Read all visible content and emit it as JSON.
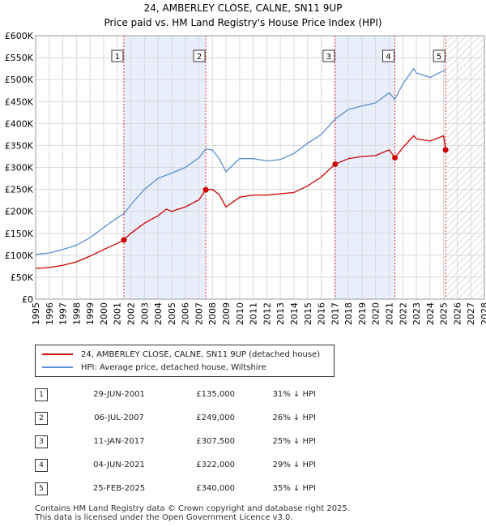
{
  "chart_data": {
    "type": "line",
    "title": "24, AMBERLEY CLOSE, CALNE, SN11 9UP",
    "subtitle": "Price paid vs. HM Land Registry's House Price Index (HPI)",
    "xlim": [
      1995,
      2028
    ],
    "ylim": [
      0,
      600000
    ],
    "x_ticks": [
      "1995",
      "1996",
      "1997",
      "1998",
      "1999",
      "2000",
      "2001",
      "2002",
      "2003",
      "2004",
      "2005",
      "2006",
      "2007",
      "2008",
      "2009",
      "2010",
      "2011",
      "2012",
      "2013",
      "2014",
      "2015",
      "2016",
      "2017",
      "2018",
      "2019",
      "2020",
      "2021",
      "2022",
      "2023",
      "2024",
      "2025",
      "2026",
      "2027",
      "2028"
    ],
    "y_ticks": [
      {
        "value": 0,
        "label": "£0"
      },
      {
        "value": 50000,
        "label": "£50K"
      },
      {
        "value": 100000,
        "label": "£100K"
      },
      {
        "value": 150000,
        "label": "£150K"
      },
      {
        "value": 200000,
        "label": "£200K"
      },
      {
        "value": 250000,
        "label": "£250K"
      },
      {
        "value": 300000,
        "label": "£300K"
      },
      {
        "value": 350000,
        "label": "£350K"
      },
      {
        "value": 400000,
        "label": "£400K"
      },
      {
        "value": 450000,
        "label": "£450K"
      },
      {
        "value": 500000,
        "label": "£500K"
      },
      {
        "value": 550000,
        "label": "£550K"
      },
      {
        "value": 600000,
        "label": "£600K"
      }
    ],
    "grid": true,
    "shaded_ranges": [
      [
        2001.49,
        2007.51
      ],
      [
        2017.03,
        2021.42
      ]
    ],
    "future_hatch_from": 2025.15,
    "series": [
      {
        "name": "24, AMBERLEY CLOSE, CALNE, SN11 9UP (detached house)",
        "color": "#cc0000",
        "x": [
          1995.0,
          1996.0,
          1997.0,
          1998.0,
          1999.0,
          2000.0,
          2001.0,
          2001.49,
          2002.0,
          2003.0,
          2004.0,
          2004.6,
          2005.0,
          2006.0,
          2007.0,
          2007.51,
          2008.0,
          2008.5,
          2009.0,
          2010.0,
          2011.0,
          2012.0,
          2013.0,
          2014.0,
          2015.0,
          2016.0,
          2017.03,
          2018.0,
          2019.0,
          2020.0,
          2021.0,
          2021.42,
          2022.0,
          2022.8,
          2023.0,
          2024.0,
          2025.0,
          2025.15
        ],
        "y": [
          70000,
          72000,
          77000,
          85000,
          98000,
          113000,
          127000,
          135000,
          150000,
          173000,
          190000,
          205000,
          200000,
          210000,
          226000,
          249000,
          250000,
          238000,
          210000,
          232000,
          237000,
          237000,
          240000,
          243000,
          258000,
          278000,
          307500,
          320000,
          325000,
          327000,
          340000,
          322000,
          345000,
          372000,
          365000,
          360000,
          372000,
          340000
        ]
      },
      {
        "name": "HPI: Average price, detached house, Wiltshire",
        "color": "#5b8fd0",
        "x": [
          1995.0,
          1996.0,
          1997.0,
          1998.0,
          1999.0,
          2000.0,
          2001.0,
          2001.49,
          2002.0,
          2003.0,
          2004.0,
          2005.0,
          2006.0,
          2007.0,
          2007.51,
          2008.0,
          2008.5,
          2009.0,
          2010.0,
          2011.0,
          2012.0,
          2013.0,
          2014.0,
          2015.0,
          2016.0,
          2017.03,
          2018.0,
          2019.0,
          2020.0,
          2021.0,
          2021.42,
          2022.0,
          2022.8,
          2023.0,
          2024.0,
          2025.0,
          2025.15
        ],
        "y": [
          102000,
          105000,
          113000,
          123000,
          140000,
          163000,
          185000,
          195000,
          215000,
          250000,
          275000,
          287000,
          300000,
          322000,
          342000,
          340000,
          320000,
          290000,
          320000,
          320000,
          315000,
          318000,
          332000,
          355000,
          375000,
          410000,
          432000,
          440000,
          447000,
          470000,
          455000,
          490000,
          525000,
          515000,
          505000,
          520000,
          522000
        ]
      }
    ],
    "sale_markers": [
      {
        "id": "1",
        "x": 2001.49,
        "y": 135000
      },
      {
        "id": "2",
        "x": 2007.51,
        "y": 249000
      },
      {
        "id": "3",
        "x": 2017.03,
        "y": 307500
      },
      {
        "id": "4",
        "x": 2021.42,
        "y": 322000
      },
      {
        "id": "5",
        "x": 2025.15,
        "y": 340000
      }
    ]
  },
  "legend": {
    "red_label": "24, AMBERLEY CLOSE, CALNE, SN11 9UP (detached house)",
    "blue_label": "HPI: Average price, detached house, Wiltshire",
    "red_color": "#cc0000",
    "blue_color": "#5b8fd0"
  },
  "sales": [
    {
      "num": "1",
      "date": "29-JUN-2001",
      "price": "£135,000",
      "delta": "31% ↓ HPI"
    },
    {
      "num": "2",
      "date": "06-JUL-2007",
      "price": "£249,000",
      "delta": "26% ↓ HPI"
    },
    {
      "num": "3",
      "date": "11-JAN-2017",
      "price": "£307,500",
      "delta": "25% ↓ HPI"
    },
    {
      "num": "4",
      "date": "04-JUN-2021",
      "price": "£322,000",
      "delta": "29% ↓ HPI"
    },
    {
      "num": "5",
      "date": "25-FEB-2025",
      "price": "£340,000",
      "delta": "35% ↓ HPI"
    }
  ],
  "footer": {
    "line1": "Contains HM Land Registry data © Crown copyright and database right 2025.",
    "line2": "This data is licensed under the Open Government Licence v3.0."
  }
}
